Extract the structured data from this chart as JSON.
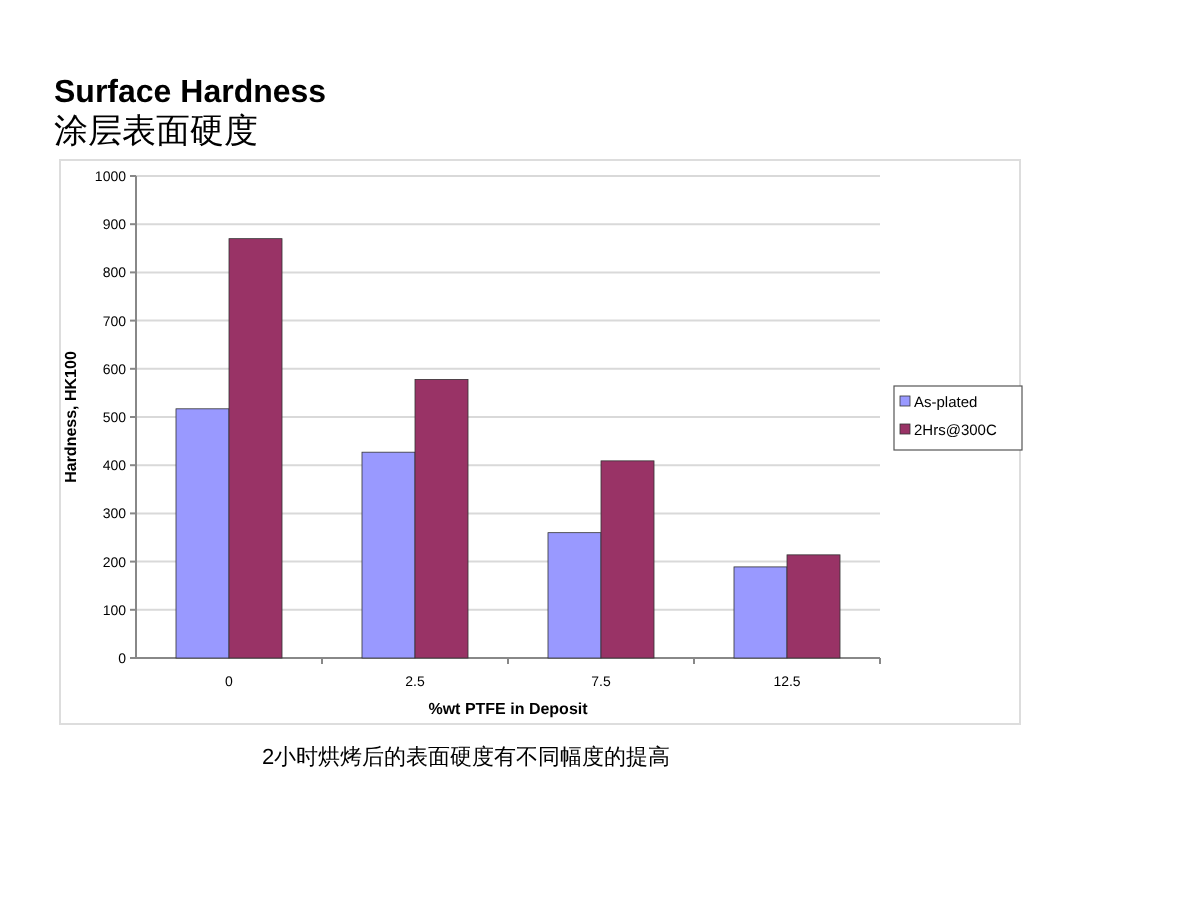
{
  "chart_data": {
    "type": "bar",
    "title": "Surface Hardness",
    "subtitle": "涂层表面硬度",
    "xlabel": "%wt PTFE in Deposit",
    "ylabel": "Hardness, HK100",
    "categories": [
      "0",
      "2.5",
      "7.5",
      "12.5"
    ],
    "series": [
      {
        "name": "As-plated",
        "color": "#9999ff",
        "values": [
          517,
          427,
          260,
          189
        ]
      },
      {
        "name": "2Hrs@300C",
        "color": "#993366",
        "values": [
          870,
          578,
          409,
          214
        ]
      }
    ],
    "ylim": [
      0,
      1000
    ],
    "yticks": [
      0,
      100,
      200,
      300,
      400,
      500,
      600,
      700,
      800,
      900,
      1000
    ],
    "grid": "y",
    "legend": "right",
    "annotations": [
      "2小时烘烤后的表面硬度有不同幅度的提高"
    ]
  }
}
